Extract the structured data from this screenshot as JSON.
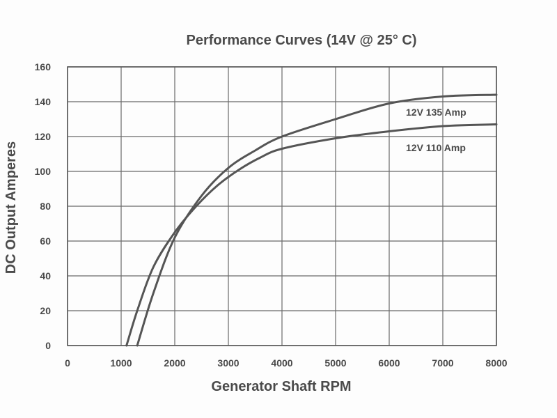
{
  "chart_data": {
    "type": "line",
    "title": "Performance Curves (14V @ 25° C)",
    "xlabel": "Generator Shaft RPM",
    "ylabel": "DC Output Amperes",
    "xlim": [
      0,
      8000
    ],
    "ylim": [
      0,
      160
    ],
    "x_ticks": [
      "0",
      "1000",
      "2000",
      "3000",
      "4000",
      "5000",
      "6000",
      "7000",
      "8000"
    ],
    "y_ticks": [
      "0",
      "20",
      "40",
      "60",
      "80",
      "100",
      "120",
      "140",
      "160"
    ],
    "grid": true,
    "series": [
      {
        "name": "12V 135 Amp",
        "x": [
          1300,
          1600,
          2000,
          2500,
          3000,
          3500,
          4000,
          5000,
          6000,
          7000,
          8000
        ],
        "y": [
          0,
          30,
          62,
          86,
          102,
          112,
          120,
          130,
          139,
          143,
          144
        ]
      },
      {
        "name": "12V 110 Amp",
        "x": [
          1100,
          1300,
          1600,
          2000,
          2400,
          2800,
          3200,
          3600,
          4000,
          5000,
          6000,
          7000,
          8000
        ],
        "y": [
          0,
          20,
          45,
          65,
          80,
          92,
          101,
          108,
          113,
          119,
          123,
          126,
          127
        ]
      }
    ]
  }
}
